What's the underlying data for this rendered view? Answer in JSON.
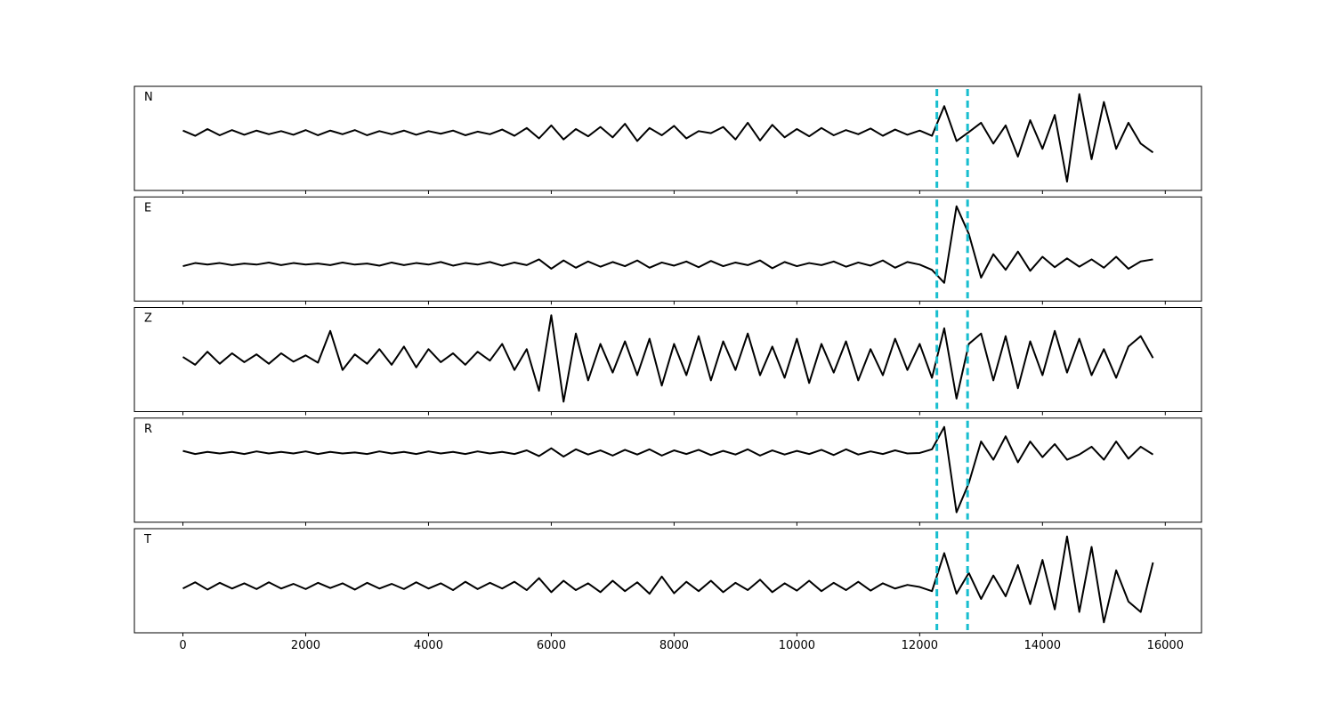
{
  "chart_data": [
    {
      "type": "line",
      "title": "N",
      "color": "#000000",
      "ylim": [
        -1,
        1
      ],
      "vlines": [
        12280,
        12780
      ],
      "vline_color": "#17becf",
      "x": [
        0,
        200,
        400,
        600,
        800,
        1000,
        1200,
        1400,
        1600,
        1800,
        2000,
        2200,
        2400,
        2600,
        2800,
        3000,
        3200,
        3400,
        3600,
        3800,
        4000,
        4200,
        4400,
        4600,
        4800,
        5000,
        5200,
        5400,
        5600,
        5800,
        6000,
        6200,
        6400,
        6600,
        6800,
        7000,
        7200,
        7400,
        7600,
        7800,
        8000,
        8200,
        8400,
        8600,
        8800,
        9000,
        9200,
        9400,
        9600,
        9800,
        10000,
        10200,
        10400,
        10600,
        10800,
        11000,
        11200,
        11400,
        11600,
        11800,
        12000,
        12200,
        12400,
        12600,
        12800,
        13000,
        13200,
        13400,
        13600,
        13800,
        14000,
        14200,
        14400,
        14600,
        14800,
        15000,
        15200,
        15400,
        15600,
        15800
      ],
      "values": [
        0.15,
        0.05,
        0.18,
        0.06,
        0.16,
        0.07,
        0.15,
        0.08,
        0.14,
        0.07,
        0.16,
        0.06,
        0.15,
        0.08,
        0.16,
        0.06,
        0.14,
        0.08,
        0.15,
        0.07,
        0.14,
        0.09,
        0.15,
        0.06,
        0.13,
        0.08,
        0.17,
        0.05,
        0.2,
        0.0,
        0.25,
        -0.02,
        0.18,
        0.04,
        0.22,
        0.02,
        0.28,
        -0.05,
        0.2,
        0.06,
        0.24,
        0.0,
        0.14,
        0.1,
        0.22,
        -0.02,
        0.3,
        -0.04,
        0.26,
        0.02,
        0.18,
        0.04,
        0.2,
        0.06,
        0.16,
        0.08,
        0.19,
        0.05,
        0.17,
        0.07,
        0.15,
        0.05,
        0.62,
        -0.05,
        0.12,
        0.3,
        -0.1,
        0.25,
        -0.35,
        0.35,
        -0.2,
        0.45,
        -0.83,
        0.85,
        -0.4,
        0.7,
        -0.2,
        0.3,
        -0.1,
        -0.27
      ]
    },
    {
      "type": "line",
      "title": "E",
      "color": "#000000",
      "ylim": [
        -1,
        1
      ],
      "vlines": [
        12280,
        12780
      ],
      "vline_color": "#17becf",
      "x": [
        0,
        200,
        400,
        600,
        800,
        1000,
        1200,
        1400,
        1600,
        1800,
        2000,
        2200,
        2400,
        2600,
        2800,
        3000,
        3200,
        3400,
        3600,
        3800,
        4000,
        4200,
        4400,
        4600,
        4800,
        5000,
        5200,
        5400,
        5600,
        5800,
        6000,
        6200,
        6400,
        6600,
        6800,
        7000,
        7200,
        7400,
        7600,
        7800,
        8000,
        8200,
        8400,
        8600,
        8800,
        9000,
        9200,
        9400,
        9600,
        9800,
        10000,
        10200,
        10400,
        10600,
        10800,
        11000,
        11200,
        11400,
        11600,
        11800,
        12000,
        12200,
        12400,
        12600,
        12800,
        13000,
        13200,
        13400,
        13600,
        13800,
        14000,
        14200,
        14400,
        14600,
        14800,
        15000,
        15200,
        15400,
        15600,
        15800
      ],
      "values": [
        -0.33,
        -0.27,
        -0.3,
        -0.27,
        -0.31,
        -0.28,
        -0.3,
        -0.26,
        -0.31,
        -0.27,
        -0.3,
        -0.28,
        -0.31,
        -0.26,
        -0.3,
        -0.28,
        -0.32,
        -0.26,
        -0.31,
        -0.27,
        -0.3,
        -0.25,
        -0.32,
        -0.27,
        -0.3,
        -0.25,
        -0.32,
        -0.26,
        -0.31,
        -0.2,
        -0.38,
        -0.22,
        -0.36,
        -0.24,
        -0.34,
        -0.25,
        -0.33,
        -0.22,
        -0.36,
        -0.26,
        -0.32,
        -0.24,
        -0.35,
        -0.23,
        -0.33,
        -0.26,
        -0.31,
        -0.22,
        -0.37,
        -0.25,
        -0.33,
        -0.27,
        -0.31,
        -0.24,
        -0.34,
        -0.26,
        -0.32,
        -0.22,
        -0.36,
        -0.25,
        -0.3,
        -0.4,
        -0.65,
        0.82,
        0.29,
        -0.55,
        -0.1,
        -0.4,
        -0.05,
        -0.42,
        -0.15,
        -0.35,
        -0.18,
        -0.34,
        -0.2,
        -0.36,
        -0.15,
        -0.38,
        -0.24,
        -0.2
      ]
    },
    {
      "type": "line",
      "title": "Z",
      "color": "#000000",
      "ylim": [
        -1,
        1
      ],
      "vlines": [
        12280,
        12780
      ],
      "vline_color": "#17becf",
      "x": [
        0,
        200,
        400,
        600,
        800,
        1000,
        1200,
        1400,
        1600,
        1800,
        2000,
        2200,
        2400,
        2600,
        2800,
        3000,
        3200,
        3400,
        3600,
        3800,
        4000,
        4200,
        4400,
        4600,
        4800,
        5000,
        5200,
        5400,
        5600,
        5800,
        6000,
        6200,
        6400,
        6600,
        6800,
        7000,
        7200,
        7400,
        7600,
        7800,
        8000,
        8200,
        8400,
        8600,
        8800,
        9000,
        9200,
        9400,
        9600,
        9800,
        10000,
        10200,
        10400,
        10600,
        10800,
        11000,
        11200,
        11400,
        11600,
        11800,
        12000,
        12200,
        12400,
        12600,
        12800,
        13000,
        13200,
        13400,
        13600,
        13800,
        14000,
        14200,
        14400,
        14600,
        14800,
        15000,
        15200,
        15400,
        15600,
        15800
      ],
      "values": [
        0.05,
        -0.1,
        0.15,
        -0.08,
        0.12,
        -0.05,
        0.1,
        -0.08,
        0.12,
        -0.04,
        0.08,
        -0.06,
        0.55,
        -0.2,
        0.1,
        -0.08,
        0.2,
        -0.1,
        0.25,
        -0.15,
        0.2,
        -0.05,
        0.12,
        -0.1,
        0.15,
        -0.02,
        0.3,
        -0.2,
        0.2,
        -0.6,
        0.85,
        -0.81,
        0.5,
        -0.4,
        0.3,
        -0.25,
        0.35,
        -0.3,
        0.4,
        -0.5,
        0.3,
        -0.3,
        0.45,
        -0.4,
        0.35,
        -0.2,
        0.5,
        -0.3,
        0.25,
        -0.35,
        0.4,
        -0.45,
        0.3,
        -0.25,
        0.35,
        -0.4,
        0.2,
        -0.3,
        0.4,
        -0.2,
        0.3,
        -0.35,
        0.6,
        -0.75,
        0.3,
        0.5,
        -0.4,
        0.45,
        -0.55,
        0.35,
        -0.3,
        0.55,
        -0.25,
        0.4,
        -0.3,
        0.2,
        -0.35,
        0.25,
        0.45,
        0.03
      ]
    },
    {
      "type": "line",
      "title": "R",
      "color": "#000000",
      "ylim": [
        -1,
        1
      ],
      "vlines": [
        12280,
        12780
      ],
      "vline_color": "#17becf",
      "x": [
        0,
        200,
        400,
        600,
        800,
        1000,
        1200,
        1400,
        1600,
        1800,
        2000,
        2200,
        2400,
        2600,
        2800,
        3000,
        3200,
        3400,
        3600,
        3800,
        4000,
        4200,
        4400,
        4600,
        4800,
        5000,
        5200,
        5400,
        5600,
        5800,
        6000,
        6200,
        6400,
        6600,
        6800,
        7000,
        7200,
        7400,
        7600,
        7800,
        8000,
        8200,
        8400,
        8600,
        8800,
        9000,
        9200,
        9400,
        9600,
        9800,
        10000,
        10200,
        10400,
        10600,
        10800,
        11000,
        11200,
        11400,
        11600,
        11800,
        12000,
        12200,
        12400,
        12600,
        12800,
        13000,
        13200,
        13400,
        13600,
        13800,
        14000,
        14200,
        14400,
        14600,
        14800,
        15000,
        15200,
        15400,
        15600,
        15800
      ],
      "values": [
        0.37,
        0.31,
        0.35,
        0.32,
        0.35,
        0.31,
        0.36,
        0.32,
        0.35,
        0.32,
        0.36,
        0.31,
        0.35,
        0.32,
        0.34,
        0.31,
        0.36,
        0.32,
        0.35,
        0.31,
        0.36,
        0.32,
        0.35,
        0.31,
        0.36,
        0.32,
        0.35,
        0.31,
        0.38,
        0.27,
        0.42,
        0.26,
        0.4,
        0.3,
        0.38,
        0.28,
        0.39,
        0.3,
        0.4,
        0.28,
        0.38,
        0.31,
        0.39,
        0.29,
        0.37,
        0.3,
        0.4,
        0.28,
        0.38,
        0.3,
        0.37,
        0.31,
        0.39,
        0.29,
        0.4,
        0.3,
        0.36,
        0.31,
        0.38,
        0.32,
        0.33,
        0.4,
        0.83,
        -0.81,
        -0.25,
        0.55,
        0.2,
        0.65,
        0.15,
        0.55,
        0.25,
        0.5,
        0.2,
        0.3,
        0.45,
        0.2,
        0.55,
        0.22,
        0.45,
        0.3
      ]
    },
    {
      "type": "line",
      "title": "T",
      "color": "#000000",
      "ylim": [
        -1,
        1
      ],
      "vlines": [
        12280,
        12780
      ],
      "vline_color": "#17becf",
      "xlim": [
        -790,
        16590
      ],
      "xticks": [
        0,
        2000,
        4000,
        6000,
        8000,
        10000,
        12000,
        14000,
        16000
      ],
      "x": [
        0,
        200,
        400,
        600,
        800,
        1000,
        1200,
        1400,
        1600,
        1800,
        2000,
        2200,
        2400,
        2600,
        2800,
        3000,
        3200,
        3400,
        3600,
        3800,
        4000,
        4200,
        4400,
        4600,
        4800,
        5000,
        5200,
        5400,
        5600,
        5800,
        6000,
        6200,
        6400,
        6600,
        6800,
        7000,
        7200,
        7400,
        7600,
        7800,
        8000,
        8200,
        8400,
        8600,
        8800,
        9000,
        9200,
        9400,
        9600,
        9800,
        10000,
        10200,
        10400,
        10600,
        10800,
        11000,
        11200,
        11400,
        11600,
        11800,
        12000,
        12200,
        12400,
        12600,
        12800,
        13000,
        13200,
        13400,
        13600,
        13800,
        14000,
        14200,
        14400,
        14600,
        14800,
        15000,
        15200,
        15400,
        15600,
        15800
      ],
      "values": [
        -0.15,
        -0.03,
        -0.17,
        -0.04,
        -0.15,
        -0.05,
        -0.16,
        -0.03,
        -0.15,
        -0.06,
        -0.16,
        -0.04,
        -0.14,
        -0.05,
        -0.17,
        -0.04,
        -0.15,
        -0.06,
        -0.16,
        -0.03,
        -0.15,
        -0.05,
        -0.18,
        -0.02,
        -0.16,
        -0.04,
        -0.15,
        -0.02,
        -0.18,
        0.05,
        -0.22,
        0.0,
        -0.18,
        -0.05,
        -0.22,
        0.0,
        -0.2,
        -0.03,
        -0.25,
        0.08,
        -0.24,
        -0.02,
        -0.2,
        0.0,
        -0.22,
        -0.04,
        -0.18,
        0.02,
        -0.22,
        -0.05,
        -0.19,
        0.0,
        -0.2,
        -0.04,
        -0.18,
        -0.02,
        -0.19,
        -0.05,
        -0.15,
        -0.08,
        -0.12,
        -0.2,
        0.53,
        -0.25,
        0.15,
        -0.35,
        0.1,
        -0.3,
        0.3,
        -0.45,
        0.4,
        -0.55,
        0.85,
        -0.6,
        0.65,
        -0.8,
        0.2,
        -0.4,
        -0.6,
        0.35
      ]
    }
  ]
}
